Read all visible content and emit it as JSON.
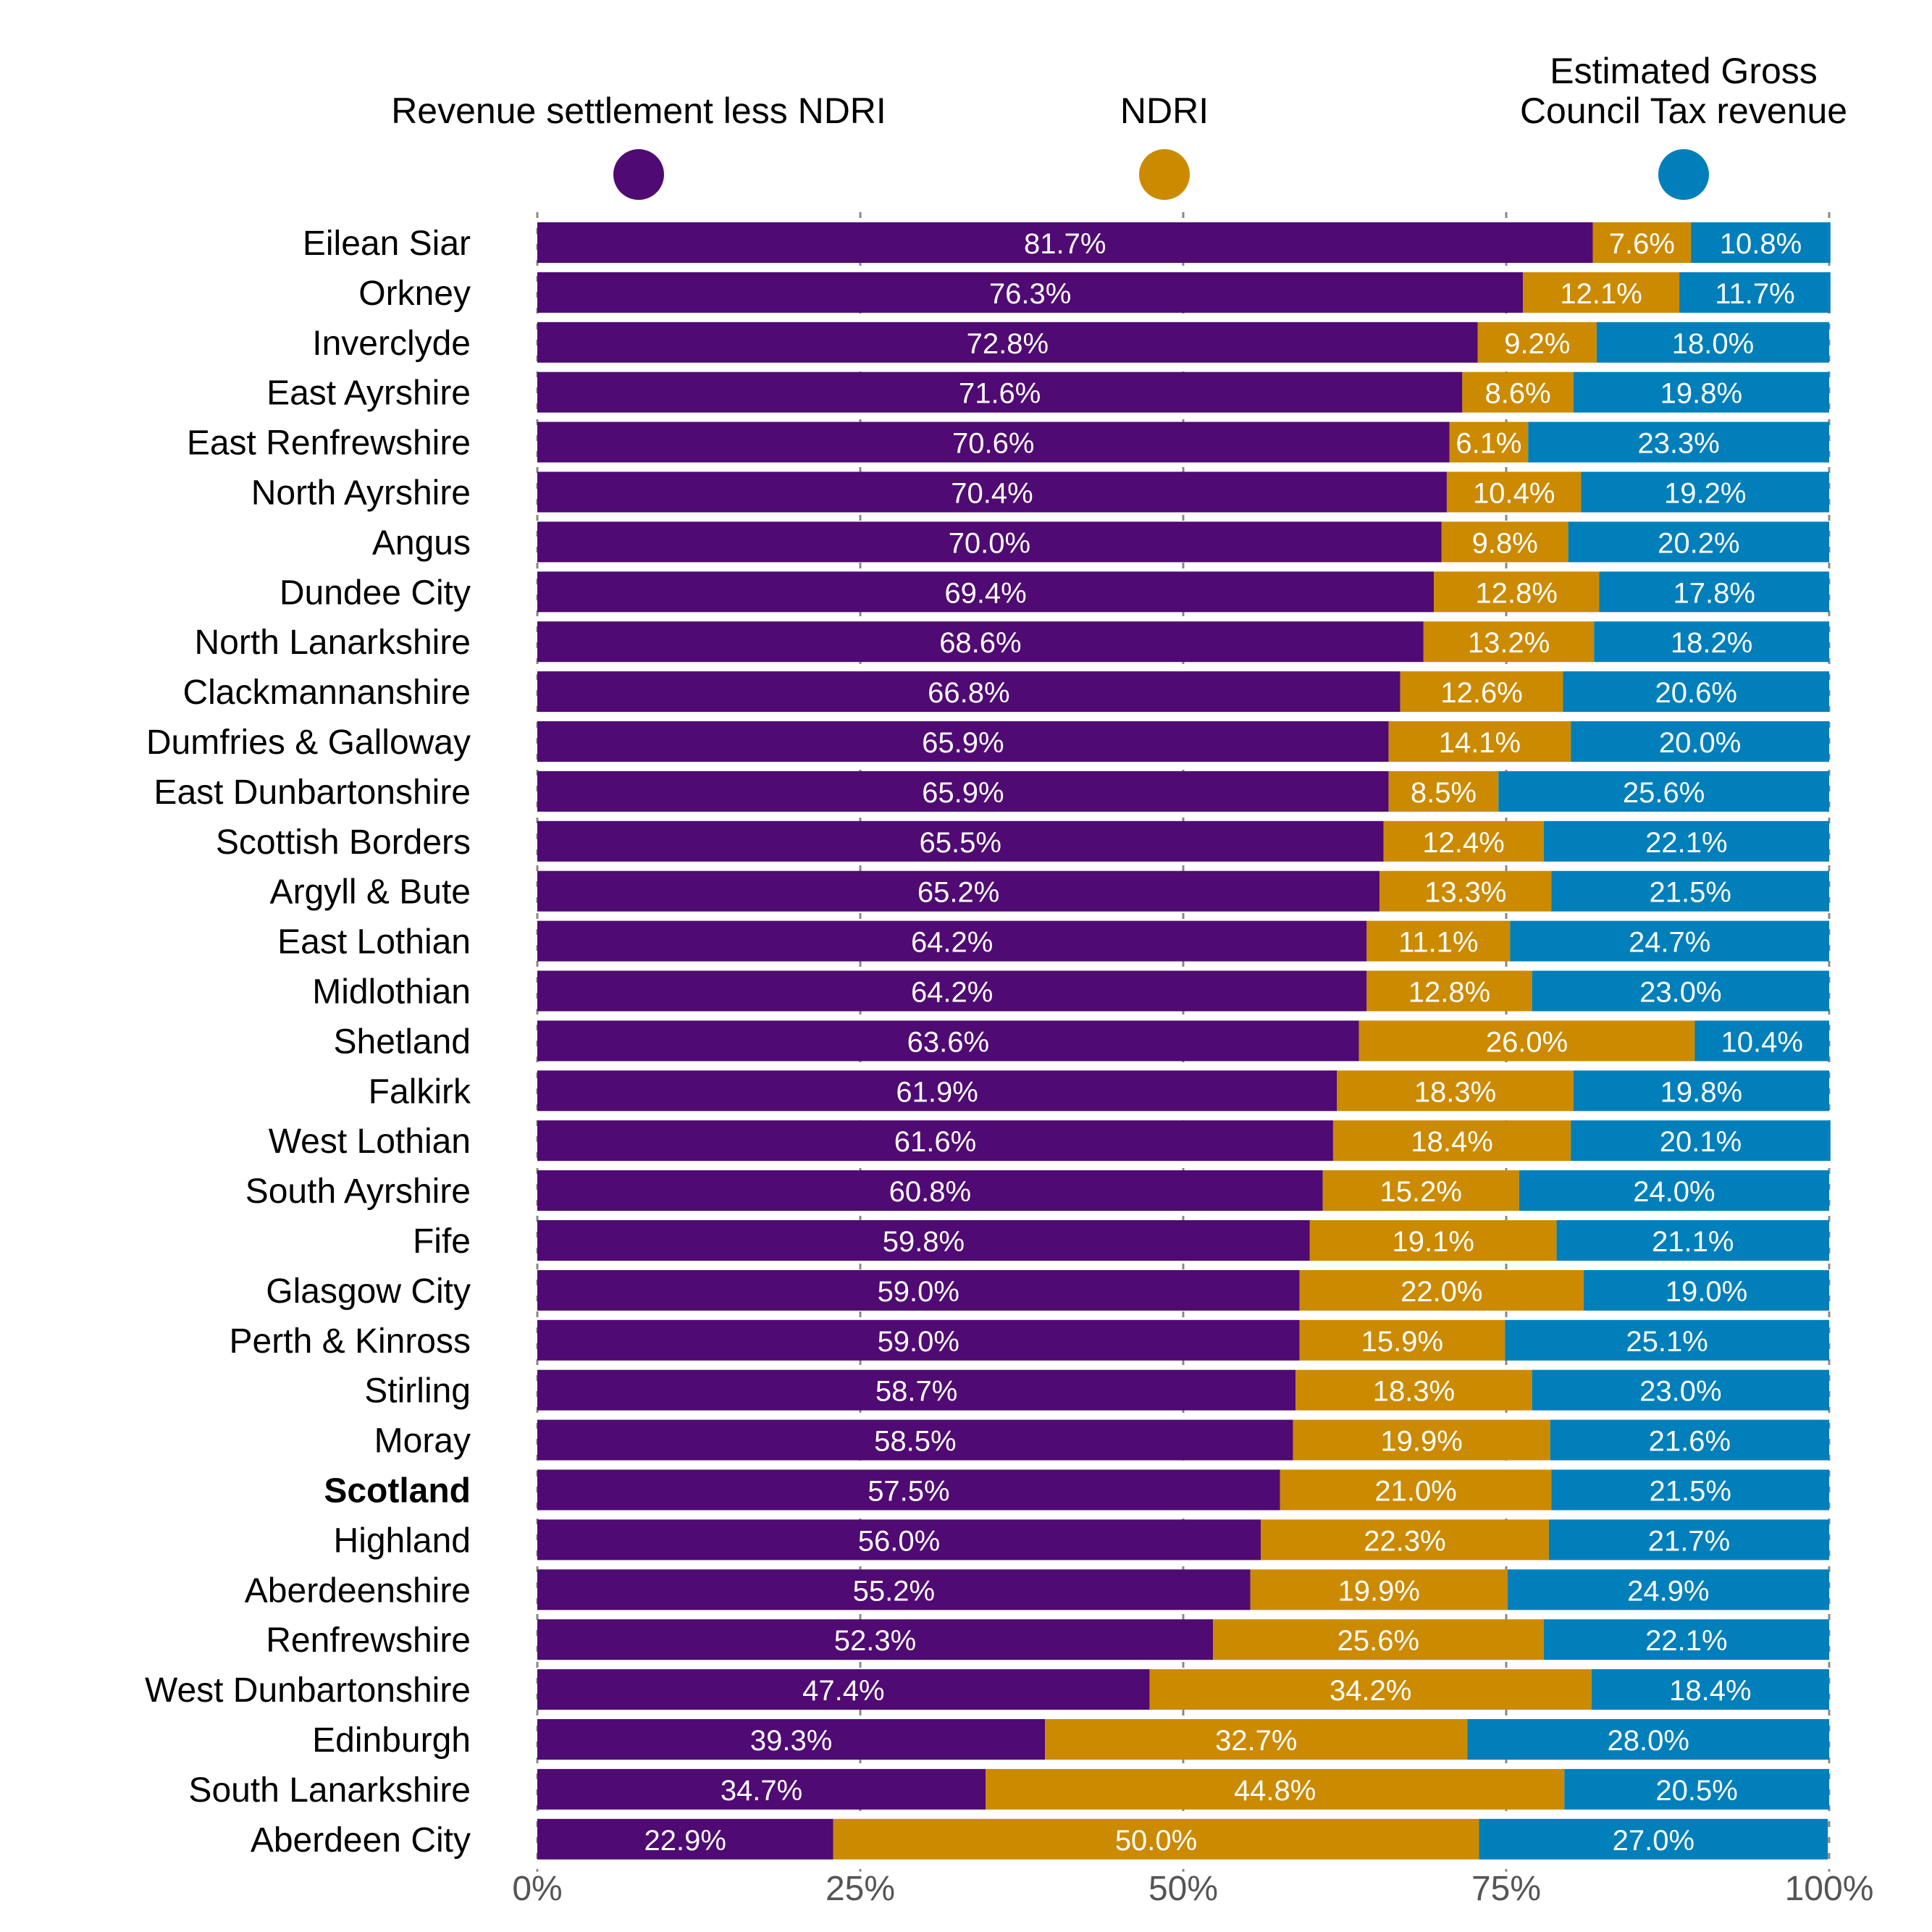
{
  "chart_data": {
    "type": "bar",
    "orientation": "horizontal",
    "stacked": true,
    "normalized": true,
    "title": "",
    "xlabel": "",
    "ylabel": "",
    "xlim": [
      0,
      100
    ],
    "x_ticks": [
      "0%",
      "25%",
      "50%",
      "75%",
      "100%"
    ],
    "x_tick_values": [
      0,
      25,
      50,
      75,
      100
    ],
    "grid": "vertical dashed at ticks",
    "legend_placement": "top",
    "highlighted_category": "Scotland",
    "categories": [
      "Eilean Siar",
      "Orkney",
      "Inverclyde",
      "East Ayrshire",
      "East Renfrewshire",
      "North Ayrshire",
      "Angus",
      "Dundee City",
      "North Lanarkshire",
      "Clackmannanshire",
      "Dumfries & Galloway",
      "East Dunbartonshire",
      "Scottish Borders",
      "Argyll & Bute",
      "East Lothian",
      "Midlothian",
      "Shetland",
      "Falkirk",
      "West Lothian",
      "South Ayrshire",
      "Fife",
      "Glasgow City",
      "Perth & Kinross",
      "Stirling",
      "Moray",
      "Scotland",
      "Highland",
      "Aberdeenshire",
      "Renfrewshire",
      "West Dunbartonshire",
      "Edinburgh",
      "South Lanarkshire",
      "Aberdeen City"
    ],
    "series": [
      {
        "name": "Revenue settlement less NDRI",
        "color": "#500a73",
        "values": [
          81.7,
          76.3,
          72.8,
          71.6,
          70.6,
          70.4,
          70.0,
          69.4,
          68.6,
          66.8,
          65.9,
          65.9,
          65.5,
          65.2,
          64.2,
          64.2,
          63.6,
          61.9,
          61.6,
          60.8,
          59.8,
          59.0,
          59.0,
          58.7,
          58.5,
          57.5,
          56.0,
          55.2,
          52.3,
          47.4,
          39.3,
          34.7,
          22.9
        ]
      },
      {
        "name": "NDRI",
        "color": "#cc8a00",
        "values": [
          7.6,
          12.1,
          9.2,
          8.6,
          6.1,
          10.4,
          9.8,
          12.8,
          13.2,
          12.6,
          14.1,
          8.5,
          12.4,
          13.3,
          11.1,
          12.8,
          26.0,
          18.3,
          18.4,
          15.2,
          19.1,
          22.0,
          15.9,
          18.3,
          19.9,
          21.0,
          22.3,
          19.9,
          25.6,
          34.2,
          32.7,
          44.8,
          50.0
        ]
      },
      {
        "name": "Estimated Gross Council Tax revenue",
        "color": "#007fbb",
        "values": [
          10.8,
          11.7,
          18.0,
          19.8,
          23.3,
          19.2,
          20.2,
          17.8,
          18.2,
          20.6,
          20.0,
          25.6,
          22.1,
          21.5,
          24.7,
          23.0,
          10.4,
          19.8,
          20.1,
          24.0,
          21.1,
          19.0,
          25.1,
          23.0,
          21.6,
          21.5,
          21.7,
          24.9,
          22.1,
          18.4,
          28.0,
          20.5,
          27.0
        ]
      }
    ],
    "legend": [
      {
        "label_lines": [
          "Revenue settlement less NDRI"
        ],
        "color": "#500a73",
        "marker": "circle"
      },
      {
        "label_lines": [
          "NDRI"
        ],
        "color": "#cc8a00",
        "marker": "circle"
      },
      {
        "label_lines": [
          "Estimated Gross",
          "Council Tax revenue"
        ],
        "color": "#007fbb",
        "marker": "circle"
      }
    ],
    "value_label_suffix": "%"
  }
}
